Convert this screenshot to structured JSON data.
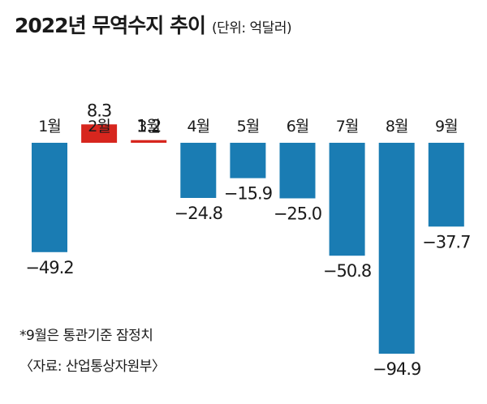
{
  "chart_data": {
    "type": "bar",
    "title": "2022년 무역수지 추이",
    "unit": "(단위: 억달러)",
    "categories": [
      "1월",
      "2월",
      "3월",
      "4월",
      "5월",
      "6월",
      "7월",
      "8월",
      "9월"
    ],
    "values": [
      -49.2,
      8.3,
      1.2,
      -24.8,
      -15.9,
      -25.0,
      -50.8,
      -94.9,
      -37.7
    ],
    "value_labels": [
      "−49.2",
      "8.3",
      "1.2",
      "−24.8",
      "−15.9",
      "−25.0",
      "−50.8",
      "−94.9",
      "−37.7"
    ],
    "colors": {
      "positive": "#d7261e",
      "negative": "#1a7cb3"
    },
    "note": "*9월은 통관기준 잠정치",
    "source": "〈자료: 산업통상자원부〉"
  }
}
